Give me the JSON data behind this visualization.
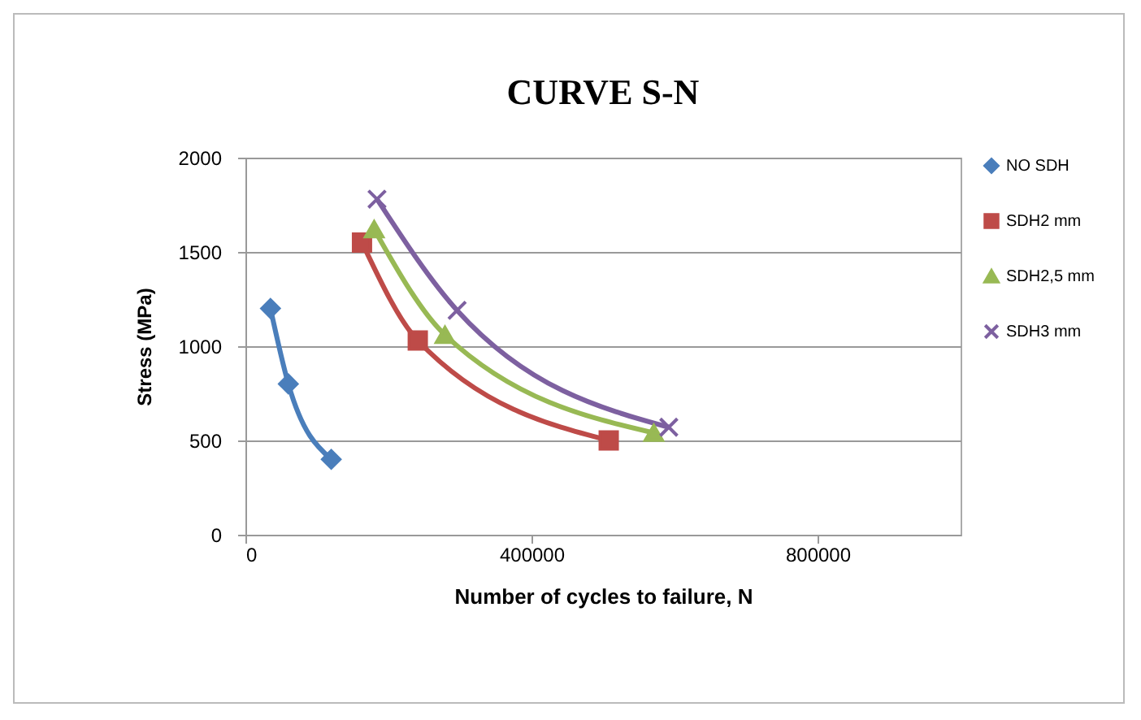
{
  "chart_data": {
    "type": "line",
    "title": "CURVE  S-N",
    "xlabel": "Number of cycles  to failure,  N",
    "ylabel": "Stress (MPa)",
    "xlim": [
      0,
      1000000
    ],
    "xticks": [
      0,
      400000,
      800000
    ],
    "ylim": [
      0,
      2000
    ],
    "yticks": [
      0,
      500,
      1000,
      1500,
      2000
    ],
    "grid": "y",
    "legend": "right",
    "series": [
      {
        "name": "NO  SDH",
        "color": "#4a7ebb",
        "marker": "diamond",
        "x": [
          35000,
          60000,
          120000
        ],
        "values": [
          1200,
          800,
          400
        ]
      },
      {
        "name": "SDH2 mm",
        "color": "#be4b48",
        "marker": "square",
        "x": [
          163000,
          241000,
          508000
        ],
        "values": [
          1550,
          1030,
          500
        ]
      },
      {
        "name": "SDH2,5 mm",
        "color": "#98b954",
        "marker": "triangle",
        "x": [
          180000,
          279000,
          571000
        ],
        "values": [
          1620,
          1060,
          540
        ]
      },
      {
        "name": "SDH3 mm",
        "color": "#7d60a0",
        "marker": "cross",
        "x": [
          184000,
          296000,
          592000
        ],
        "values": [
          1780,
          1190,
          570
        ]
      }
    ]
  }
}
